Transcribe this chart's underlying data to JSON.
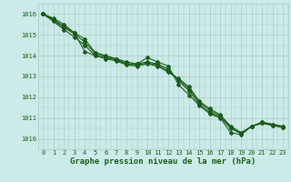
{
  "xlabel": "Graphe pression niveau de la mer (hPa)",
  "ylim": [
    1009.5,
    1016.5
  ],
  "xlim": [
    -0.5,
    23.5
  ],
  "yticks": [
    1010,
    1011,
    1012,
    1013,
    1014,
    1015,
    1016
  ],
  "xticks": [
    0,
    1,
    2,
    3,
    4,
    5,
    6,
    7,
    8,
    9,
    10,
    11,
    12,
    13,
    14,
    15,
    16,
    17,
    18,
    19,
    20,
    21,
    22,
    23
  ],
  "background_color": "#cceae7",
  "grid_color": "#aacccc",
  "line_color": "#1a5c1a",
  "lines": [
    [
      1016.0,
      1015.8,
      1015.5,
      1015.1,
      1014.2,
      1014.0,
      1013.9,
      1013.8,
      1013.6,
      1013.6,
      1013.9,
      1013.7,
      1013.5,
      1012.6,
      1012.1,
      1011.6,
      1011.2,
      1011.0,
      1010.3,
      1010.2,
      1010.6,
      1010.8,
      1010.7,
      1010.6
    ],
    [
      1016.0,
      1015.75,
      1015.4,
      1015.1,
      1014.8,
      1014.15,
      1014.0,
      1013.85,
      1013.7,
      1013.6,
      1013.7,
      1013.6,
      1013.35,
      1012.8,
      1012.3,
      1011.65,
      1011.25,
      1011.05,
      1010.5,
      1010.25,
      1010.6,
      1010.8,
      1010.7,
      1010.6
    ],
    [
      1016.0,
      1015.7,
      1015.35,
      1015.05,
      1014.65,
      1014.1,
      1013.95,
      1013.85,
      1013.6,
      1013.55,
      1013.65,
      1013.55,
      1013.25,
      1012.85,
      1012.4,
      1011.75,
      1011.35,
      1011.1,
      1010.55,
      1010.25,
      1010.6,
      1010.75,
      1010.65,
      1010.55
    ],
    [
      1016.0,
      1015.65,
      1015.25,
      1014.9,
      1014.5,
      1014.0,
      1013.85,
      1013.75,
      1013.55,
      1013.5,
      1013.6,
      1013.5,
      1013.2,
      1012.9,
      1012.5,
      1011.8,
      1011.45,
      1011.15,
      1010.6,
      1010.3,
      1010.6,
      1010.75,
      1010.65,
      1010.55
    ]
  ],
  "marker": "D",
  "markersize": 2.0,
  "linewidth": 0.8,
  "font_color": "#1a5c1a",
  "label_fontsize": 6.5,
  "tick_fontsize": 5.0
}
